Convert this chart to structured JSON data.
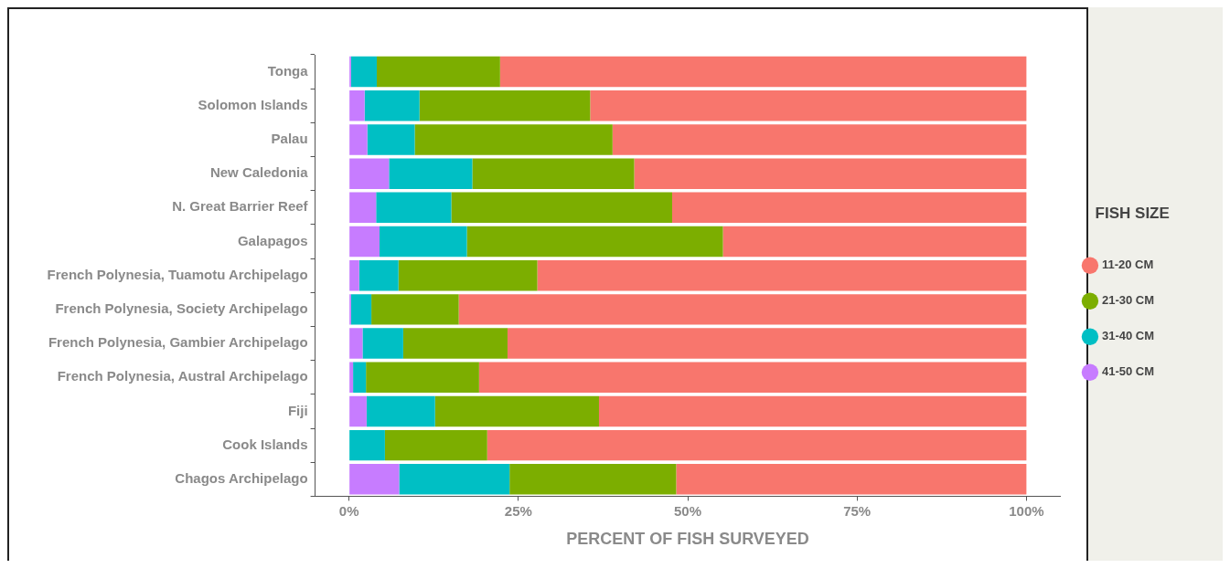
{
  "chart_data": {
    "type": "bar",
    "orientation": "horizontal",
    "stacked": true,
    "xlabel": "PERCENT OF FISH SURVEYED",
    "legend_title": "FISH SIZE",
    "legend": "right",
    "categories": [
      "Tonga",
      "Solomon Islands",
      "Palau",
      "New Caledonia",
      "N. Great Barrier Reef",
      "Galapagos",
      "French Polynesia, Tuamotu Archipelago",
      "French Polynesia, Society Archipelago",
      "French Polynesia, Gambier Archipelago",
      "French Polynesia, Austral Archipelago",
      "Fiji",
      "Cook Islands",
      "Chagos Archipelago"
    ],
    "xlim": [
      -5,
      105
    ],
    "xticks": [
      {
        "value": 0,
        "label": "0%"
      },
      {
        "value": 25,
        "label": "25%"
      },
      {
        "value": 50,
        "label": "50%"
      },
      {
        "value": 75,
        "label": "75%"
      },
      {
        "value": 100,
        "label": "100%"
      }
    ],
    "series": [
      {
        "name": "41-50 CM",
        "color": "#c77cff",
        "values": [
          0.3,
          2.3,
          2.7,
          5.9,
          4.0,
          4.5,
          1.5,
          0.3,
          2.0,
          0.6,
          2.6,
          0,
          7.4
        ]
      },
      {
        "name": "31-40 CM",
        "color": "#00bfc4",
        "values": [
          3.8,
          8.1,
          7.0,
          12.3,
          11.1,
          12.9,
          5.8,
          3.0,
          6.0,
          1.9,
          10.1,
          5.3,
          16.3
        ]
      },
      {
        "name": "21-30 CM",
        "color": "#7cae00",
        "values": [
          18.2,
          25.2,
          29.2,
          23.9,
          32.6,
          37.8,
          20.5,
          12.9,
          15.4,
          16.7,
          24.2,
          15.1,
          24.6
        ]
      },
      {
        "name": "11-20 CM",
        "color": "#f8766d",
        "values": [
          77.7,
          64.4,
          61.1,
          57.9,
          52.3,
          44.8,
          72.2,
          83.8,
          76.6,
          80.8,
          63.1,
          79.6,
          51.7
        ]
      }
    ]
  }
}
